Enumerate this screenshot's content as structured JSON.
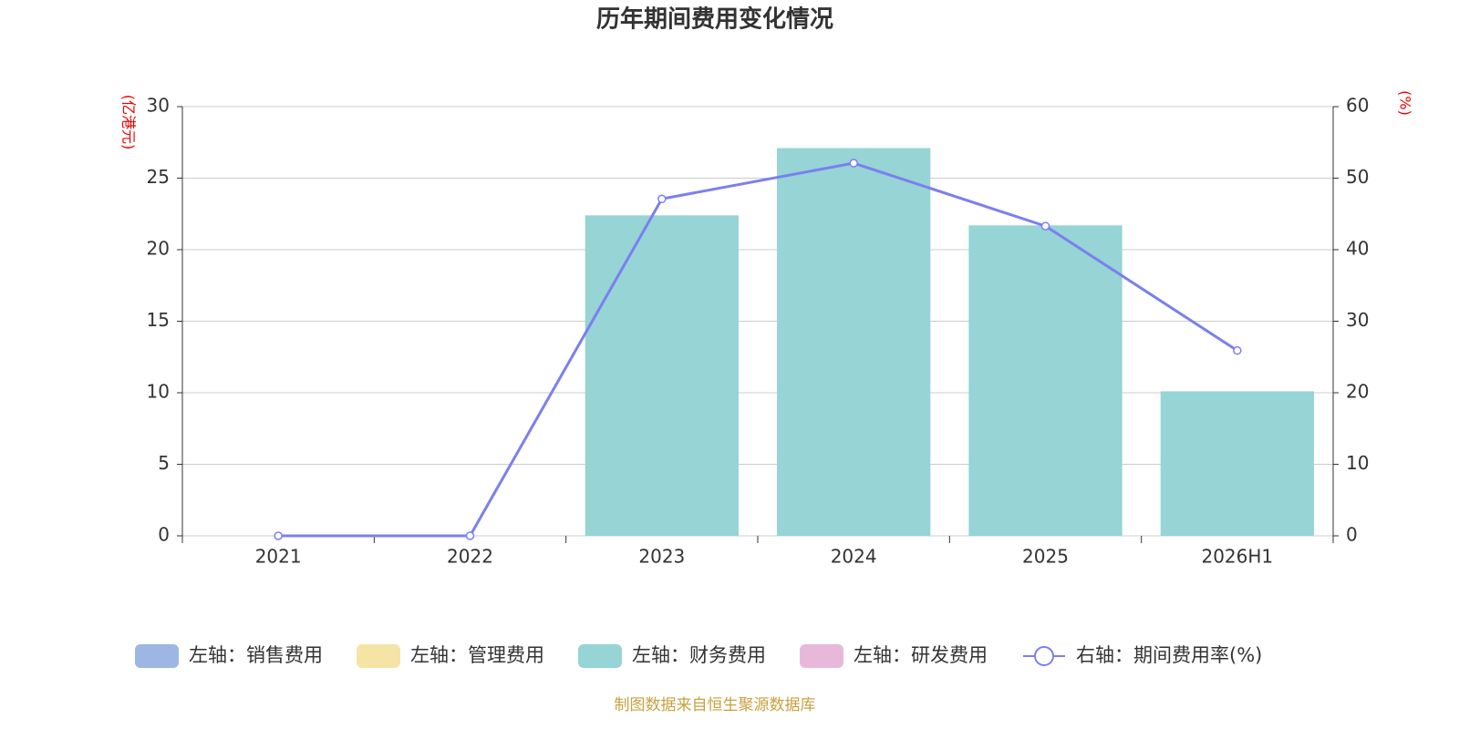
{
  "chart_data": {
    "type": "bar",
    "title": "历年期间费用变化情况",
    "y_label": "(亿港元)",
    "y2_label": "(%)",
    "source": "制图数据来自恒生聚源数据库",
    "categories": [
      "2021",
      "2022",
      "2023",
      "2024",
      "2025",
      "2026H1"
    ],
    "series": [
      {
        "name": "左轴：销售费用",
        "color": "#9db6e3",
        "values": [
          null,
          null,
          null,
          null,
          null,
          null
        ]
      },
      {
        "name": "左轴：管理费用",
        "color": "#f5e4a5",
        "values": [
          null,
          null,
          null,
          null,
          null,
          null
        ]
      },
      {
        "name": "左轴：财务费用",
        "color": "#96d4d5",
        "values": [
          0,
          0,
          22.4,
          27.1,
          21.7,
          10.1
        ]
      },
      {
        "name": "左轴：研发费用",
        "color": "#e8b8da",
        "values": [
          null,
          null,
          null,
          null,
          null,
          null
        ]
      },
      {
        "name": "右轴：期间费用率(%)",
        "color": "#7b7ff0",
        "type": "line",
        "axis": "y2",
        "values": [
          0,
          0,
          47.1,
          52.1,
          43.3,
          25.9
        ]
      }
    ],
    "ylim": [
      0,
      30
    ],
    "yticks": [
      0,
      5,
      10,
      15,
      20,
      25,
      30
    ],
    "y2lim": [
      0,
      60
    ],
    "y2ticks": [
      0,
      10,
      20,
      30,
      40,
      50,
      60
    ],
    "grid": true
  }
}
